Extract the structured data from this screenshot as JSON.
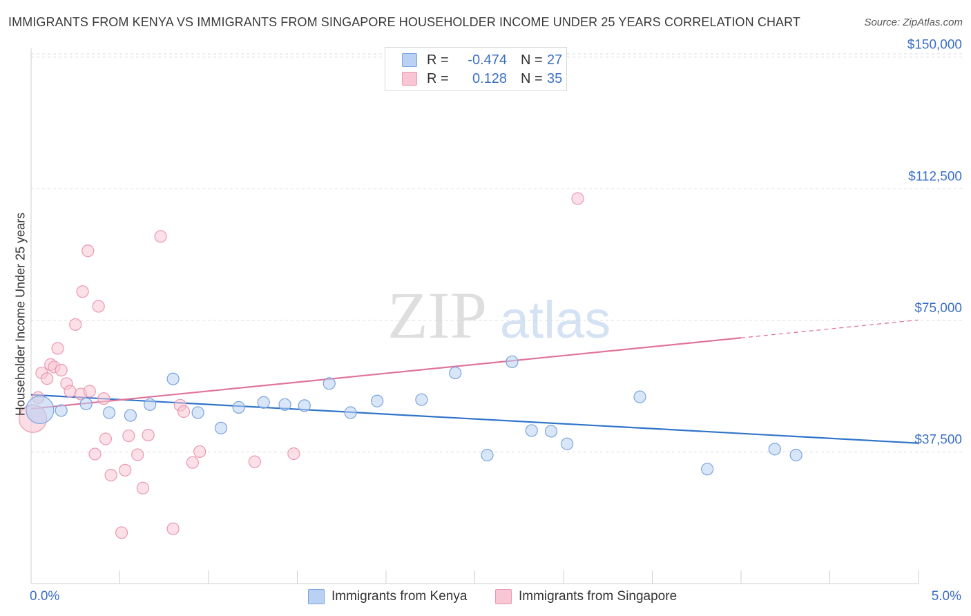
{
  "title": "IMMIGRANTS FROM KENYA VS IMMIGRANTS FROM SINGAPORE HOUSEHOLDER INCOME UNDER 25 YEARS CORRELATION CHART",
  "source": "Source: ZipAtlas.com",
  "watermark": {
    "zip": "ZIP",
    "atlas": "atlas"
  },
  "legend": {
    "kenya": {
      "r_label": "R =",
      "r_value": "-0.474",
      "n_label": "N =",
      "n_value": "27"
    },
    "singapore": {
      "r_label": "R =",
      "r_value": "0.128",
      "n_label": "N =",
      "n_value": "35"
    }
  },
  "bottom_legend": {
    "kenya": "Immigrants from Kenya",
    "singapore": "Immigrants from Singapore"
  },
  "colors": {
    "kenya_fill": "#b9d1f3",
    "kenya_stroke": "#7aa3dd",
    "kenya_line": "#2f74c9",
    "singapore_fill": "#f8c6d4",
    "singapore_stroke": "#eb98b2",
    "singapore_line": "#e0739a",
    "axis_label": "#3a6fc4",
    "grid": "#dcdcdc"
  },
  "chart_data": {
    "type": "scatter",
    "title": "IMMIGRANTS FROM KENYA VS IMMIGRANTS FROM SINGAPORE HOUSEHOLDER INCOME UNDER 25 YEARS CORRELATION CHART",
    "xlabel": "",
    "ylabel": "Householder Income Under 25 years",
    "xlim": [
      0,
      5
    ],
    "ylim": [
      0,
      152500
    ],
    "x_tick_labels": [
      {
        "value": 0,
        "label": "0.0%"
      },
      {
        "value": 5,
        "label": "5.0%"
      }
    ],
    "y_ticks": [
      {
        "value": 37500,
        "label": "$37,500"
      },
      {
        "value": 75000,
        "label": "$75,000"
      },
      {
        "value": 112500,
        "label": "$112,500"
      },
      {
        "value": 150000,
        "label": "$150,000"
      }
    ],
    "series": [
      {
        "name": "Immigrants from Kenya",
        "r": -0.474,
        "n": 27,
        "trend": {
          "x0": 0.0,
          "y0": 53800,
          "x1": 5.0,
          "y1": 40000
        },
        "points": [
          {
            "x": 0.05,
            "y": 49500,
            "size": "large"
          },
          {
            "x": 0.17,
            "y": 49300
          },
          {
            "x": 0.31,
            "y": 51200
          },
          {
            "x": 0.44,
            "y": 48700
          },
          {
            "x": 0.56,
            "y": 47900
          },
          {
            "x": 0.67,
            "y": 51000
          },
          {
            "x": 0.8,
            "y": 58300
          },
          {
            "x": 0.94,
            "y": 48700
          },
          {
            "x": 1.07,
            "y": 44300
          },
          {
            "x": 1.17,
            "y": 50200
          },
          {
            "x": 1.31,
            "y": 51600
          },
          {
            "x": 1.43,
            "y": 51000
          },
          {
            "x": 1.54,
            "y": 50700
          },
          {
            "x": 1.68,
            "y": 57000
          },
          {
            "x": 1.8,
            "y": 48700
          },
          {
            "x": 1.95,
            "y": 52000
          },
          {
            "x": 2.2,
            "y": 52400
          },
          {
            "x": 2.39,
            "y": 60000
          },
          {
            "x": 2.57,
            "y": 36600
          },
          {
            "x": 2.71,
            "y": 63200
          },
          {
            "x": 2.82,
            "y": 43600
          },
          {
            "x": 2.93,
            "y": 43400
          },
          {
            "x": 3.02,
            "y": 39800
          },
          {
            "x": 3.43,
            "y": 53200
          },
          {
            "x": 3.81,
            "y": 32600
          },
          {
            "x": 4.19,
            "y": 38300
          },
          {
            "x": 4.31,
            "y": 36600
          }
        ]
      },
      {
        "name": "Immigrants from Singapore",
        "r": 0.128,
        "n": 35,
        "trend": {
          "x0": 0.0,
          "y0": 49800,
          "x1": 4.0,
          "y1": 70000,
          "dash_to_x": 5.0,
          "dash_to_y": 75100
        },
        "points": [
          {
            "x": 0.01,
            "y": 47000,
            "size": "large"
          },
          {
            "x": 0.04,
            "y": 53000
          },
          {
            "x": 0.06,
            "y": 60000
          },
          {
            "x": 0.09,
            "y": 58400
          },
          {
            "x": 0.11,
            "y": 62400
          },
          {
            "x": 0.13,
            "y": 61700
          },
          {
            "x": 0.15,
            "y": 67000
          },
          {
            "x": 0.17,
            "y": 60800
          },
          {
            "x": 0.2,
            "y": 57000
          },
          {
            "x": 0.22,
            "y": 54800
          },
          {
            "x": 0.25,
            "y": 73800
          },
          {
            "x": 0.28,
            "y": 54000
          },
          {
            "x": 0.29,
            "y": 83200
          },
          {
            "x": 0.32,
            "y": 94800
          },
          {
            "x": 0.33,
            "y": 54800
          },
          {
            "x": 0.36,
            "y": 36900
          },
          {
            "x": 0.38,
            "y": 79000
          },
          {
            "x": 0.41,
            "y": 52700
          },
          {
            "x": 0.42,
            "y": 41200
          },
          {
            "x": 0.45,
            "y": 30900
          },
          {
            "x": 0.51,
            "y": 14500
          },
          {
            "x": 0.53,
            "y": 32300
          },
          {
            "x": 0.55,
            "y": 42100
          },
          {
            "x": 0.6,
            "y": 36700
          },
          {
            "x": 0.63,
            "y": 27200
          },
          {
            "x": 0.66,
            "y": 42300
          },
          {
            "x": 0.73,
            "y": 98900
          },
          {
            "x": 0.8,
            "y": 15600
          },
          {
            "x": 0.84,
            "y": 50800
          },
          {
            "x": 0.86,
            "y": 49000
          },
          {
            "x": 0.91,
            "y": 34500
          },
          {
            "x": 0.95,
            "y": 37600
          },
          {
            "x": 1.26,
            "y": 34700
          },
          {
            "x": 1.48,
            "y": 37000
          },
          {
            "x": 3.08,
            "y": 109700
          }
        ]
      }
    ]
  }
}
